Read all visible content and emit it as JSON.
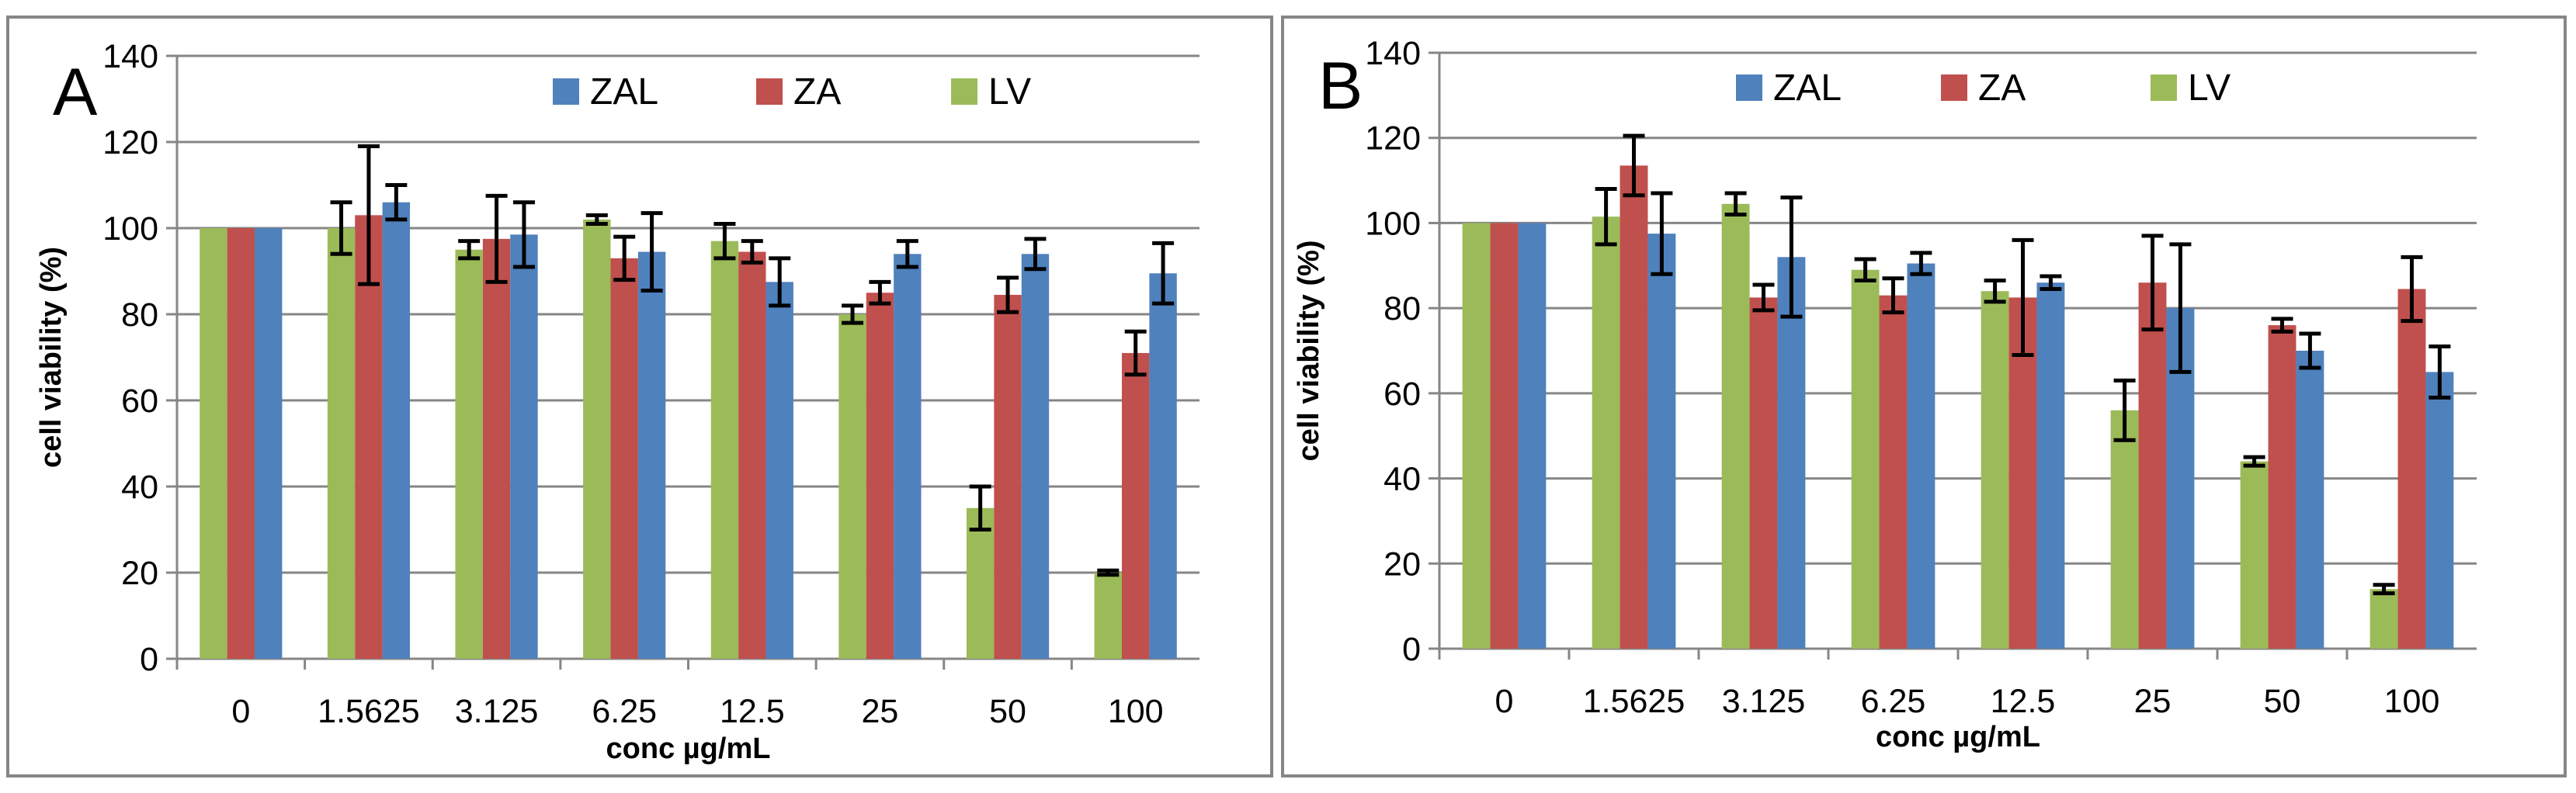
{
  "chart_data": [
    {
      "type": "bar",
      "panel_label": "A",
      "categories": [
        "0",
        "1.5625",
        "3.125",
        "6.25",
        "12.5",
        "25",
        "50",
        "100"
      ],
      "series": [
        {
          "name": "LV",
          "color": "#9bbb59",
          "values": [
            100,
            100,
            95,
            102,
            97,
            80,
            35,
            20
          ],
          "errors": [
            0,
            6,
            2,
            1,
            4,
            2,
            5,
            0.5
          ]
        },
        {
          "name": "ZA",
          "color": "#c0504d",
          "values": [
            100,
            103,
            97.5,
            93,
            94.5,
            85,
            84.5,
            71
          ],
          "errors": [
            0,
            16,
            10,
            5,
            2.5,
            2.5,
            4,
            5
          ]
        },
        {
          "name": "ZAL",
          "color": "#4f81bd",
          "values": [
            100,
            106,
            98.5,
            94.5,
            87.5,
            94,
            94,
            89.5
          ],
          "errors": [
            0,
            4,
            7.5,
            9,
            5.5,
            3,
            3.5,
            7
          ]
        }
      ],
      "legend_order": [
        "ZAL",
        "ZA",
        "LV"
      ],
      "xlabel": "conc µg/mL",
      "ylabel": "cell viability (%)",
      "ylim": [
        0,
        140
      ],
      "yticks": [
        0,
        20,
        40,
        60,
        80,
        100,
        120,
        140
      ],
      "grid": true,
      "legend_position": "top"
    },
    {
      "type": "bar",
      "panel_label": "B",
      "categories": [
        "0",
        "1.5625",
        "3.125",
        "6.25",
        "12.5",
        "25",
        "50",
        "100"
      ],
      "series": [
        {
          "name": "LV",
          "color": "#9bbb59",
          "values": [
            100,
            101.5,
            104.5,
            89,
            84,
            56,
            44,
            14
          ],
          "errors": [
            0,
            6.5,
            2.5,
            2.5,
            2.5,
            7,
            1,
            1
          ]
        },
        {
          "name": "ZA",
          "color": "#c0504d",
          "values": [
            100,
            113.5,
            82.5,
            83,
            82.5,
            86,
            76,
            84.5
          ],
          "errors": [
            0,
            7,
            3,
            4,
            13.5,
            11,
            1.5,
            7.5
          ]
        },
        {
          "name": "ZAL",
          "color": "#4f81bd",
          "values": [
            100,
            97.5,
            92,
            90.5,
            86,
            80,
            70,
            65
          ],
          "errors": [
            0,
            9.5,
            14,
            2.5,
            1.5,
            15,
            4,
            6
          ]
        }
      ],
      "legend_order": [
        "ZAL",
        "ZA",
        "LV"
      ],
      "xlabel": "conc µg/mL",
      "ylabel": "cell viability (%)",
      "ylim": [
        0,
        140
      ],
      "yticks": [
        0,
        20,
        40,
        60,
        80,
        100,
        120,
        140
      ],
      "grid": true,
      "legend_position": "top"
    }
  ]
}
